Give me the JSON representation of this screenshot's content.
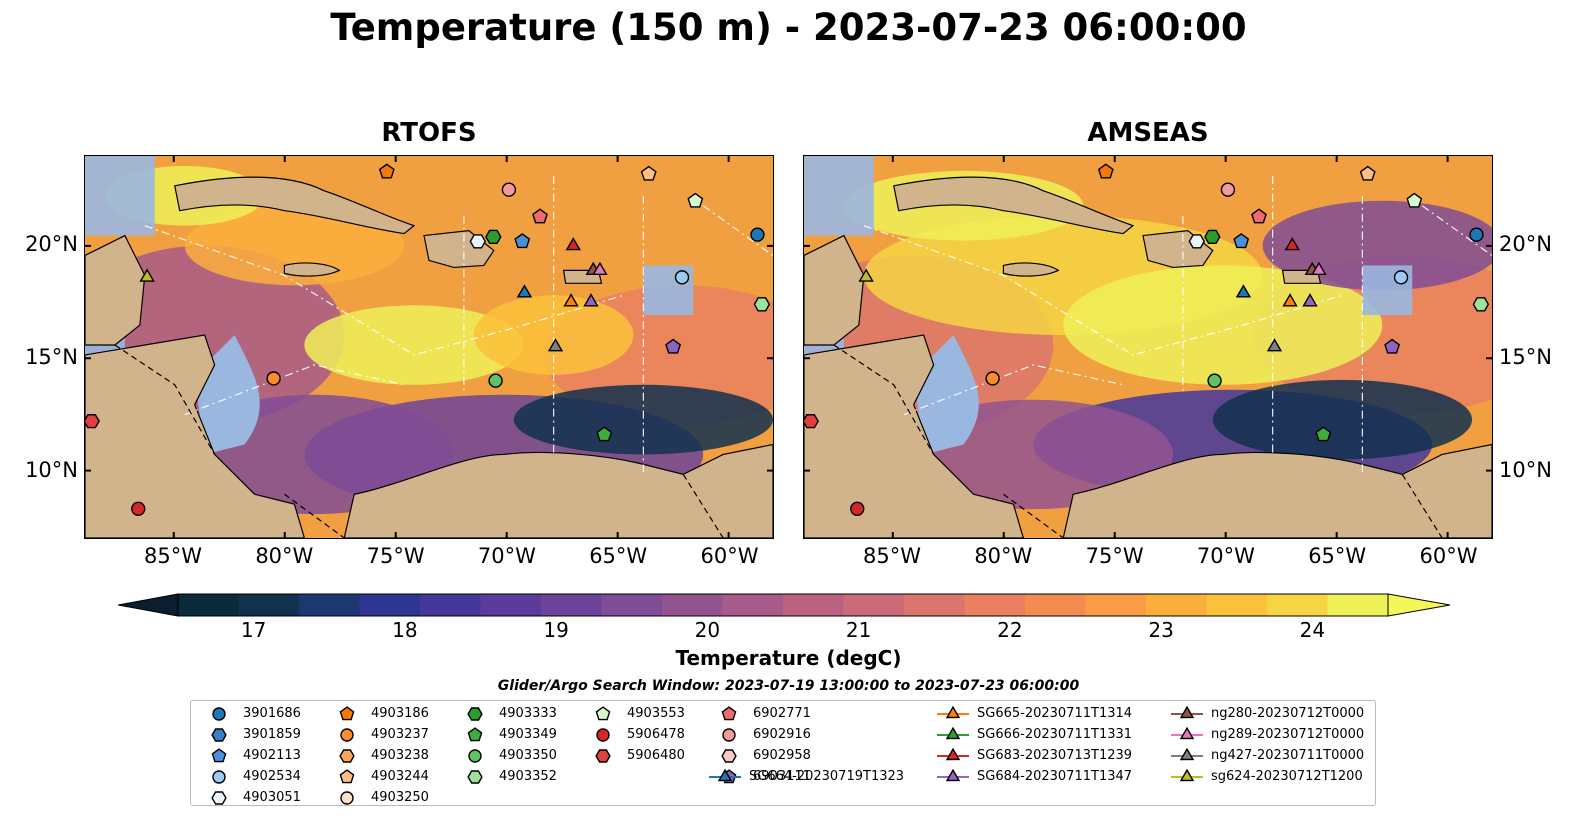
{
  "title": "Temperature (150 m) - 2023-07-23 06:00:00",
  "panels": [
    {
      "title": "RTOFS"
    },
    {
      "title": "AMSEAS"
    }
  ],
  "axes": {
    "lon_ticks": [
      "85°W",
      "80°W",
      "75°W",
      "70°W",
      "65°W",
      "60°W"
    ],
    "lat_ticks": [
      "20°N",
      "15°N",
      "10°N"
    ],
    "xlim": [
      -89,
      -58
    ],
    "ylim": [
      7,
      24
    ]
  },
  "colorbar": {
    "label": "Temperature (degC)",
    "ticks": [
      "17",
      "18",
      "19",
      "20",
      "21",
      "22",
      "23",
      "24"
    ],
    "range": [
      16.5,
      24.5
    ],
    "step": 0.25,
    "extend": "both",
    "colors": [
      "#0b2a3b",
      "#12314f",
      "#1d3870",
      "#2e3592",
      "#44379c",
      "#5b3c9b",
      "#6d4399",
      "#804c95",
      "#935391",
      "#a85a8a",
      "#bb6282",
      "#cc6b78",
      "#dc756c",
      "#ea8060",
      "#f48c52",
      "#f99c45",
      "#fbae3c",
      "#fbc13b",
      "#f6d544",
      "#eef058"
    ]
  },
  "search_window": "Glider/Argo Search Window: 2023-07-19 13:00:00 to 2023-07-23 06:00:00",
  "colors": {
    "land": "#d2b48c",
    "shallow_water": "#9ab7e0"
  },
  "legend": [
    {
      "label": "3901686",
      "marker": "circle",
      "color": "#1f77b4"
    },
    {
      "label": "3901859",
      "marker": "hexagon",
      "color": "#3b7fc4"
    },
    {
      "label": "4902113",
      "marker": "pentagon",
      "color": "#4a90d9"
    },
    {
      "label": "4902534",
      "marker": "circle",
      "color": "#9ccaf0"
    },
    {
      "label": "4903051",
      "marker": "hexagon",
      "color": "#eaf4ff"
    },
    {
      "label": "4903186",
      "marker": "pentagon",
      "color": "#f5780a"
    },
    {
      "label": "4903237",
      "marker": "circle",
      "color": "#fa8c2d"
    },
    {
      "label": "4903238",
      "marker": "hexagon",
      "color": "#fba55a"
    },
    {
      "label": "4903244",
      "marker": "pentagon",
      "color": "#fdbf85"
    },
    {
      "label": "4903250",
      "marker": "circle",
      "color": "#fde0c5"
    },
    {
      "label": "4903333",
      "marker": "hexagon",
      "color": "#2a9d2a"
    },
    {
      "label": "4903349",
      "marker": "pentagon",
      "color": "#3dae3d"
    },
    {
      "label": "4903350",
      "marker": "circle",
      "color": "#5fc35f"
    },
    {
      "label": "4903352",
      "marker": "hexagon",
      "color": "#9be39b"
    },
    {
      "label": "4903553",
      "marker": "pentagon",
      "color": "#d8f8d0"
    },
    {
      "label": "5906478",
      "marker": "circle",
      "color": "#d62728"
    },
    {
      "label": "5906480",
      "marker": "hexagon",
      "color": "#e24040"
    },
    {
      "label": "6902771",
      "marker": "pentagon",
      "color": "#ee6a6e"
    },
    {
      "label": "6902916",
      "marker": "circle",
      "color": "#f59a9a"
    },
    {
      "label": "6902958",
      "marker": "hexagon",
      "color": "#fbc8c8"
    },
    {
      "label": "6903111",
      "marker": "pentagon",
      "color": "#8c63c0"
    },
    {
      "label": "SG664-20230719T1323",
      "marker": "triangle",
      "color": "#1f77b4"
    },
    {
      "label": "SG665-20230711T1314",
      "marker": "triangle",
      "color": "#ff7f0e"
    },
    {
      "label": "SG666-20230711T1331",
      "marker": "triangle",
      "color": "#2ca02c"
    },
    {
      "label": "SG683-20230713T1239",
      "marker": "triangle",
      "color": "#d62728"
    },
    {
      "label": "SG684-20230711T1347",
      "marker": "triangle",
      "color": "#9467bd"
    },
    {
      "label": "ng280-20230712T0000",
      "marker": "triangle",
      "color": "#8c564b"
    },
    {
      "label": "ng289-20230712T0000",
      "marker": "triangle",
      "color": "#e377c2"
    },
    {
      "label": "ng427-20230711T0000",
      "marker": "triangle",
      "color": "#7f7f7f"
    },
    {
      "label": "sg624-20230712T1200",
      "marker": "triangle",
      "color": "#bcbd22"
    }
  ],
  "chart_data": [
    {
      "type": "heatmap",
      "title": "RTOFS",
      "variable": "Temperature (degC)",
      "depth_m": 150,
      "xlim": [
        -89,
        -58
      ],
      "ylim": [
        7,
        24
      ],
      "clim": [
        16.5,
        24.5
      ],
      "markers": [
        {
          "id": "3901686",
          "lon": -58.7,
          "lat": 20.5
        },
        {
          "id": "4902534",
          "lon": -62.1,
          "lat": 18.6
        },
        {
          "id": "4903051",
          "lon": -71.3,
          "lat": 20.2
        },
        {
          "id": "4902113",
          "lon": -69.3,
          "lat": 20.2
        },
        {
          "id": "4903333",
          "lon": -70.6,
          "lat": 20.4
        },
        {
          "id": "6902916",
          "lon": -69.9,
          "lat": 22.5
        },
        {
          "id": "6902771",
          "lon": -68.5,
          "lat": 21.3
        },
        {
          "id": "4903244",
          "lon": -63.6,
          "lat": 23.2
        },
        {
          "id": "4903553",
          "lon": -61.5,
          "lat": 22.0
        },
        {
          "id": "4903186",
          "lon": -75.4,
          "lat": 23.3
        },
        {
          "id": "4903352",
          "lon": -58.5,
          "lat": 17.4
        },
        {
          "id": "6903111",
          "lon": -62.5,
          "lat": 15.5
        },
        {
          "id": "4903350",
          "lon": -70.5,
          "lat": 14.0
        },
        {
          "id": "4903349",
          "lon": -65.6,
          "lat": 11.6
        },
        {
          "id": "4903237",
          "lon": -80.5,
          "lat": 14.1
        },
        {
          "id": "5906480",
          "lon": -88.7,
          "lat": 12.2
        },
        {
          "id": "5906478",
          "lon": -86.6,
          "lat": 8.3
        },
        {
          "id": "SG664-20230719T1323",
          "lon": -69.2,
          "lat": 17.9
        },
        {
          "id": "SG665-20230711T1314",
          "lon": -67.1,
          "lat": 17.5
        },
        {
          "id": "SG683-20230713T1239",
          "lon": -67.0,
          "lat": 20.0
        },
        {
          "id": "SG684-20230711T1347",
          "lon": -66.2,
          "lat": 17.5
        },
        {
          "id": "ng280-20230712T0000",
          "lon": -66.1,
          "lat": 18.9
        },
        {
          "id": "ng289-20230712T0000",
          "lon": -65.8,
          "lat": 18.9
        },
        {
          "id": "ng427-20230711T0000",
          "lon": -67.8,
          "lat": 15.5
        },
        {
          "id": "sg624-20230712T1200",
          "lon": -86.2,
          "lat": 18.6
        }
      ]
    },
    {
      "type": "heatmap",
      "title": "AMSEAS",
      "variable": "Temperature (degC)",
      "depth_m": 150,
      "xlim": [
        -89,
        -58
      ],
      "ylim": [
        7,
        24
      ],
      "clim": [
        16.5,
        24.5
      ],
      "markers": "same as RTOFS"
    }
  ]
}
